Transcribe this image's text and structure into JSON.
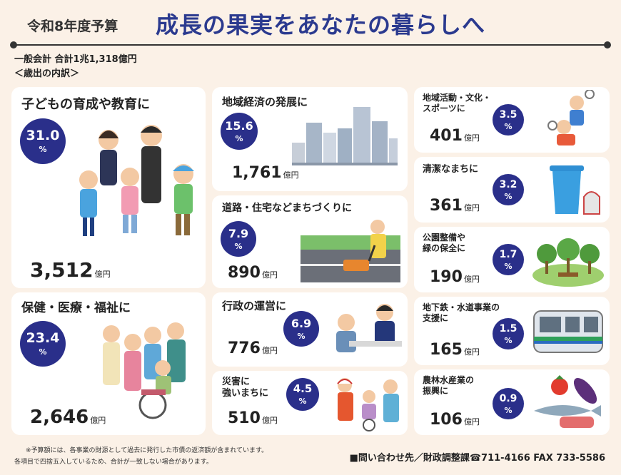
{
  "header": {
    "year": "令和8年度予算",
    "title": "成長の果実をあなたの暮らしへ",
    "subtitle": "一般会計 合計1兆1,318億円",
    "breakdown": "＜歳出の内訳＞"
  },
  "accent_color": "#2a2f8a",
  "unit": "億円",
  "pct_unit": "%",
  "items": [
    {
      "label": "子どもの育成や教育に",
      "pct": "31.0",
      "amount": "3,512"
    },
    {
      "label": "保健・医療・福祉に",
      "pct": "23.4",
      "amount": "2,646"
    },
    {
      "label": "地域経済の発展に",
      "pct": "15.6",
      "amount": "1,761"
    },
    {
      "label": "道路・住宅などまちづくりに",
      "pct": "7.9",
      "amount": "890"
    },
    {
      "label": "行政の運営に",
      "pct": "6.9",
      "amount": "776"
    },
    {
      "label_lines": [
        "災害に",
        "強いまちに"
      ],
      "pct": "4.5",
      "amount": "510"
    },
    {
      "label_lines": [
        "地域活動・文化・",
        "スポーツに"
      ],
      "pct": "3.5",
      "amount": "401"
    },
    {
      "label": "清潔なまちに",
      "pct": "3.2",
      "amount": "361"
    },
    {
      "label_lines": [
        "公園整備や",
        "緑の保全に"
      ],
      "pct": "1.7",
      "amount": "190"
    },
    {
      "label_lines": [
        "地下鉄・水道事業の",
        "支援に"
      ],
      "pct": "1.5",
      "amount": "165"
    },
    {
      "label_lines": [
        "農林水産業の",
        "振興に"
      ],
      "pct": "0.9",
      "amount": "106"
    }
  ],
  "footnotes": [
    "※予算額には、各事業の財源として過去に発行した市債の返済額が含まれています。",
    "各項目で四捨五入しているため、合計が一致しない場合があります。"
  ],
  "contact": "■問い合わせ先／財政調整課☎711-4166 FAX 733-5586"
}
